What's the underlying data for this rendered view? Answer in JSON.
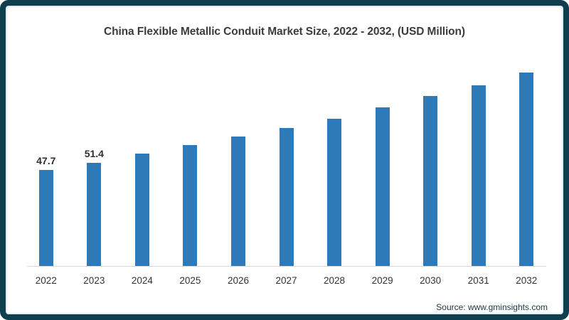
{
  "frame": {
    "border_color": "#0F3E4E",
    "inner_line_color": "#DCEDF4",
    "background": "#FFFFFF"
  },
  "chart_data": {
    "type": "bar",
    "title": "China Flexible Metallic Conduit Market Size, 2022 - 2032, (USD Million)",
    "categories": [
      "2022",
      "2023",
      "2024",
      "2025",
      "2026",
      "2027",
      "2028",
      "2029",
      "2030",
      "2031",
      "2032"
    ],
    "values": [
      47.7,
      51.4,
      55.7,
      59.9,
      64.2,
      68.4,
      73.0,
      78.6,
      84.1,
      89.4,
      95.8
    ],
    "data_labels": [
      "47.7",
      "51.4",
      "",
      "",
      "",
      "",
      "",
      "",
      "",
      "",
      ""
    ],
    "xlabel": "",
    "ylabel": "",
    "ylim": [
      0,
      100
    ],
    "grid": false,
    "legend": false,
    "bar_color": "#2E79B8",
    "value_label_color": "#2E2E2E",
    "tick_label_color": "#333333",
    "axis_line_color": "#D9D9D9",
    "title_color": "#3B3B3B"
  },
  "source": {
    "text": "Source: www.gminsights.com",
    "color": "#1B3644"
  }
}
